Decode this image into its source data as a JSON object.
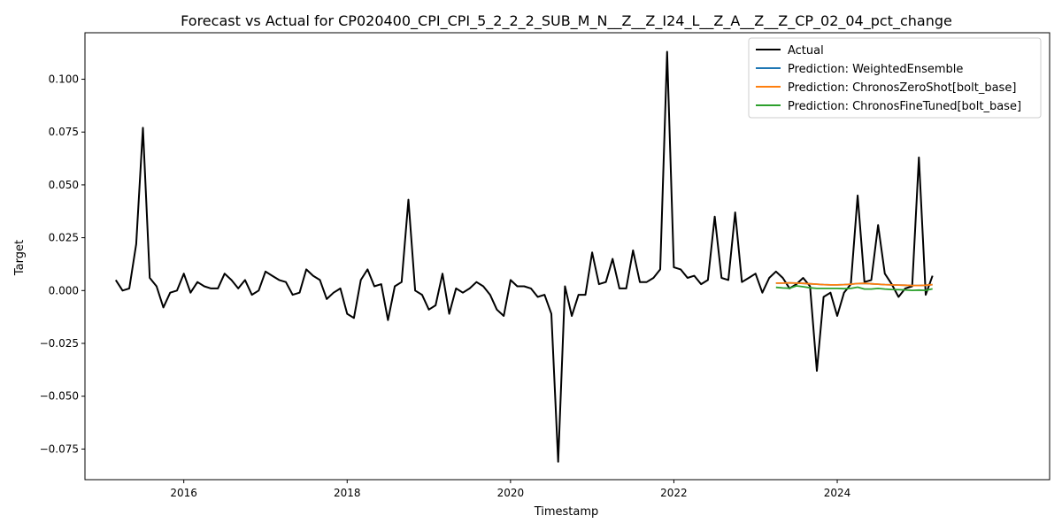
{
  "chart_data": {
    "type": "line",
    "title": "Forecast vs Actual for CP020400_CPI_CPI_5_2_2_2_SUB_M_N__Z__Z_I24_L__Z_A__Z__Z_CP_02_04_pct_change",
    "xlabel": "Timestamp",
    "ylabel": "Target",
    "xlim": [
      2014.79,
      2026.6
    ],
    "ylim": [
      -0.0895,
      0.122
    ],
    "x_ticks": [
      2016,
      2018,
      2020,
      2022,
      2024
    ],
    "x_tick_labels": [
      "2016",
      "2018",
      "2020",
      "2022",
      "2024"
    ],
    "y_ticks": [
      -0.075,
      -0.05,
      -0.025,
      0.0,
      0.025,
      0.05,
      0.075,
      0.1
    ],
    "y_tick_labels": [
      "−0.075",
      "−0.050",
      "−0.025",
      "0.000",
      "0.025",
      "0.050",
      "0.075",
      "0.100"
    ],
    "legend_position": "top-right",
    "grid": false,
    "series": [
      {
        "name": "Actual",
        "color": "#000000",
        "x": [
          2015.167,
          2015.25,
          2015.333,
          2015.417,
          2015.5,
          2015.583,
          2015.667,
          2015.75,
          2015.833,
          2015.917,
          2016.0,
          2016.083,
          2016.167,
          2016.25,
          2016.333,
          2016.417,
          2016.5,
          2016.583,
          2016.667,
          2016.75,
          2016.833,
          2016.917,
          2017.0,
          2017.083,
          2017.167,
          2017.25,
          2017.333,
          2017.417,
          2017.5,
          2017.583,
          2017.667,
          2017.75,
          2017.833,
          2017.917,
          2018.0,
          2018.083,
          2018.167,
          2018.25,
          2018.333,
          2018.417,
          2018.5,
          2018.583,
          2018.667,
          2018.75,
          2018.833,
          2018.917,
          2019.0,
          2019.083,
          2019.167,
          2019.25,
          2019.333,
          2019.417,
          2019.5,
          2019.583,
          2019.667,
          2019.75,
          2019.833,
          2019.917,
          2020.0,
          2020.083,
          2020.167,
          2020.25,
          2020.333,
          2020.417,
          2020.5,
          2020.583,
          2020.667,
          2020.75,
          2020.833,
          2020.917,
          2021.0,
          2021.083,
          2021.167,
          2021.25,
          2021.333,
          2021.417,
          2021.5,
          2021.583,
          2021.667,
          2021.75,
          2021.833,
          2021.917,
          2022.0,
          2022.083,
          2022.167,
          2022.25,
          2022.333,
          2022.417,
          2022.5,
          2022.583,
          2022.667,
          2022.75,
          2022.833,
          2022.917,
          2023.0,
          2023.083,
          2023.167,
          2023.25,
          2023.333,
          2023.417,
          2023.5,
          2023.583,
          2023.667,
          2023.75,
          2023.833,
          2023.917,
          2024.0,
          2024.083,
          2024.167,
          2024.25,
          2024.333,
          2024.417,
          2024.5,
          2024.583,
          2024.667,
          2024.75,
          2024.833,
          2024.917,
          2025.0,
          2025.083,
          2025.167
        ],
        "values": [
          0.005,
          0.0,
          0.001,
          0.022,
          0.077,
          0.006,
          0.002,
          -0.008,
          -0.001,
          0.0,
          0.008,
          -0.001,
          0.004,
          0.002,
          0.001,
          0.001,
          0.008,
          0.005,
          0.001,
          0.005,
          -0.002,
          0.0,
          0.009,
          0.007,
          0.005,
          0.004,
          -0.002,
          -0.001,
          0.01,
          0.007,
          0.005,
          -0.004,
          -0.001,
          0.001,
          -0.011,
          -0.013,
          0.005,
          0.01,
          0.002,
          0.003,
          -0.014,
          0.002,
          0.004,
          0.043,
          0.0,
          -0.002,
          -0.009,
          -0.007,
          0.008,
          -0.011,
          0.001,
          -0.001,
          0.001,
          0.004,
          0.002,
          -0.002,
          -0.009,
          -0.012,
          0.005,
          0.002,
          0.002,
          0.001,
          -0.003,
          -0.002,
          -0.011,
          -0.081,
          0.002,
          -0.012,
          -0.002,
          -0.002,
          0.018,
          0.003,
          0.004,
          0.015,
          0.001,
          0.001,
          0.019,
          0.004,
          0.004,
          0.006,
          0.01,
          0.113,
          0.011,
          0.01,
          0.006,
          0.007,
          0.003,
          0.005,
          0.035,
          0.006,
          0.005,
          0.037,
          0.004,
          0.006,
          0.008,
          -0.001,
          0.006,
          0.009,
          0.006,
          0.001,
          0.003,
          0.006,
          0.002,
          -0.038,
          -0.003,
          -0.001,
          -0.012,
          -0.001,
          0.003,
          0.045,
          0.004,
          0.005,
          0.031,
          0.008,
          0.003,
          -0.003,
          0.001,
          0.002,
          0.063,
          -0.002,
          0.007
        ]
      },
      {
        "name": "Prediction: WeightedEnsemble",
        "color": "#1f77b4",
        "x": [
          2023.25,
          2023.333,
          2023.417,
          2023.5,
          2023.583,
          2023.667,
          2023.75,
          2023.833,
          2023.917,
          2024.0,
          2024.083,
          2024.167,
          2024.25,
          2024.333,
          2024.417,
          2024.5,
          2024.583,
          2024.667,
          2024.75,
          2024.833,
          2024.917,
          2025.0,
          2025.083,
          2025.167
        ],
        "values": [
          0.0035,
          0.0035,
          0.0036,
          0.0035,
          0.0034,
          0.0032,
          0.003,
          0.0028,
          0.0027,
          0.0027,
          0.0028,
          0.003,
          0.0033,
          0.0034,
          0.0032,
          0.003,
          0.0028,
          0.0027,
          0.0026,
          0.0025,
          0.0024,
          0.0024,
          0.0025,
          0.0028
        ]
      },
      {
        "name": "Prediction: ChronosZeroShot[bolt_base]",
        "color": "#ff7f0e",
        "x": [
          2023.25,
          2023.333,
          2023.417,
          2023.5,
          2023.583,
          2023.667,
          2023.75,
          2023.833,
          2023.917,
          2024.0,
          2024.083,
          2024.167,
          2024.25,
          2024.333,
          2024.417,
          2024.5,
          2024.583,
          2024.667,
          2024.75,
          2024.833,
          2024.917,
          2025.0,
          2025.083,
          2025.167
        ],
        "values": [
          0.0035,
          0.0035,
          0.0036,
          0.0035,
          0.0034,
          0.0032,
          0.003,
          0.0028,
          0.0027,
          0.0027,
          0.0028,
          0.003,
          0.0033,
          0.0034,
          0.0032,
          0.003,
          0.0028,
          0.0027,
          0.0026,
          0.0025,
          0.0024,
          0.0024,
          0.0025,
          0.0028
        ]
      },
      {
        "name": "Prediction: ChronosFineTuned[bolt_base]",
        "color": "#2ca02c",
        "x": [
          2023.25,
          2023.333,
          2023.417,
          2023.5,
          2023.583,
          2023.667,
          2023.75,
          2023.833,
          2023.917,
          2024.0,
          2024.083,
          2024.167,
          2024.25,
          2024.333,
          2024.417,
          2024.5,
          2024.583,
          2024.667,
          2024.75,
          2024.833,
          2024.917,
          2025.0,
          2025.083,
          2025.167
        ],
        "values": [
          0.0015,
          0.0012,
          0.0011,
          0.0022,
          0.0018,
          0.0013,
          0.001,
          0.001,
          0.001,
          0.001,
          0.0009,
          0.001,
          0.0016,
          0.0007,
          0.0007,
          0.001,
          0.0007,
          0.0005,
          0.0004,
          0.0003,
          0.0001,
          0.0002,
          0.0001,
          0.0008
        ]
      }
    ]
  }
}
